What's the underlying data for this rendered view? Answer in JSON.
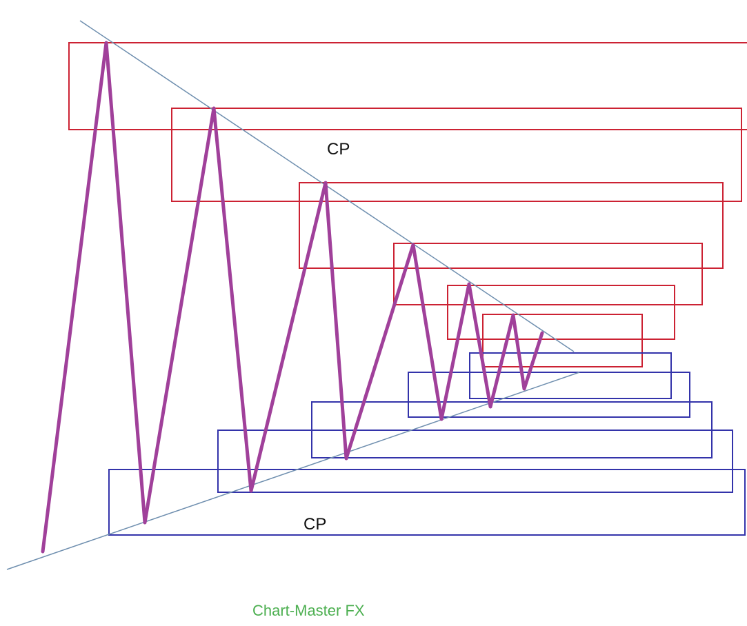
{
  "labels": {
    "upper": "CP",
    "lower": "CP"
  },
  "watermark": "Chart-Master FX",
  "colors": {
    "zigzag": "#a0409a",
    "trendline": "#6f8faf",
    "upper_boxes": "#cc2233",
    "lower_boxes": "#3333aa",
    "watermark": "#4caf50"
  }
}
